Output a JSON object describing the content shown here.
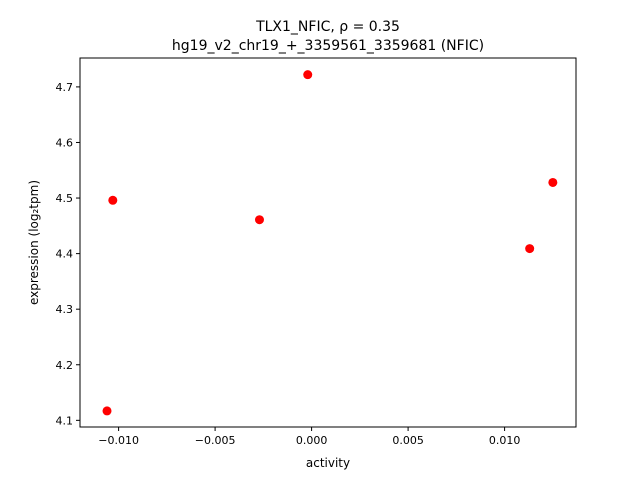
{
  "chart_data": {
    "type": "scatter",
    "title_line1": "TLX1_NFIC, ρ = 0.35",
    "title_line2": "hg19_v2_chr19_+_3359561_3359681 (NFIC)",
    "xlabel": "activity",
    "ylabel": "expression (log₂tpm)",
    "xlim": [
      -0.012,
      0.0137
    ],
    "ylim": [
      4.088,
      4.752
    ],
    "xticks": [
      -0.01,
      -0.005,
      0.0,
      0.005,
      0.01
    ],
    "xtick_labels": [
      "−0.010",
      "−0.005",
      "0.000",
      "0.005",
      "0.010"
    ],
    "yticks": [
      4.1,
      4.2,
      4.3,
      4.4,
      4.5,
      4.6,
      4.7
    ],
    "ytick_labels": [
      "4.1",
      "4.2",
      "4.3",
      "4.4",
      "4.5",
      "4.6",
      "4.7"
    ],
    "grid": false,
    "marker_color": "#ff0000",
    "points": [
      {
        "x": -0.0106,
        "y": 4.117
      },
      {
        "x": -0.0103,
        "y": 4.496
      },
      {
        "x": -0.0027,
        "y": 4.461
      },
      {
        "x": -0.0002,
        "y": 4.722
      },
      {
        "x": 0.0113,
        "y": 4.409
      },
      {
        "x": 0.0125,
        "y": 4.528
      }
    ]
  }
}
